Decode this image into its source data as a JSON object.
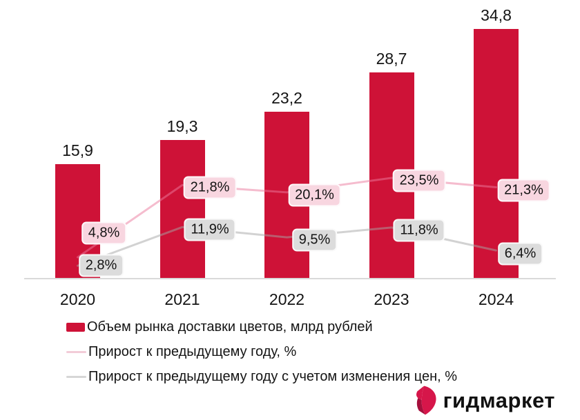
{
  "chart_data": {
    "type": "bar",
    "categories": [
      "2020",
      "2021",
      "2022",
      "2023",
      "2024"
    ],
    "series": [
      {
        "name": "Объем рынка доставки цветов, млрд рублей",
        "type": "bar",
        "values": [
          15.9,
          19.3,
          23.2,
          28.7,
          34.8
        ],
        "labels": [
          "15,9",
          "19,3",
          "23,2",
          "28,7",
          "34,8"
        ],
        "color": "#ce1237"
      },
      {
        "name": "Прирост к предыдущему году, %",
        "type": "line",
        "values": [
          4.8,
          21.8,
          20.1,
          23.5,
          21.3
        ],
        "labels": [
          "4,8%",
          "21,8%",
          "20,1%",
          "23,5%",
          "21,3%"
        ],
        "color": "#f5c4d3",
        "label_bg": "#f8d6e0"
      },
      {
        "name": "Прирост к предыдущему году с учетом изменения цен, %",
        "type": "line",
        "values": [
          2.8,
          11.9,
          9.5,
          11.8,
          6.4
        ],
        "labels": [
          "2,8%",
          "11,9%",
          "9,5%",
          "11,8%",
          "6,4%"
        ],
        "color": "#d5d5d5",
        "label_bg": "#dcdcdc"
      }
    ],
    "title": "",
    "xlabel": "",
    "ylabel": "",
    "ylim": [
      0,
      36
    ],
    "secondary_percent_axis_visible": false,
    "grid": false,
    "legend_position": "bottom-left",
    "value_decimal_separator": ","
  },
  "legend": {
    "items": [
      {
        "label": "Объем рынка доставки цветов, млрд рублей",
        "marker": "bar-swatch",
        "color": "#ce1237"
      },
      {
        "label": "Прирост к предыдущему году, %",
        "marker": "line-swatch",
        "color": "#f2ccd8"
      },
      {
        "label": "Прирост к предыдущему году с учетом изменения цен, %",
        "marker": "line-swatch",
        "color": "#d6d6d6"
      }
    ]
  },
  "logo": {
    "text": "гидмаркет",
    "icon": "gem-icon",
    "icon_color": "#d6164a",
    "icon_fold_color": "#a50f3c"
  }
}
